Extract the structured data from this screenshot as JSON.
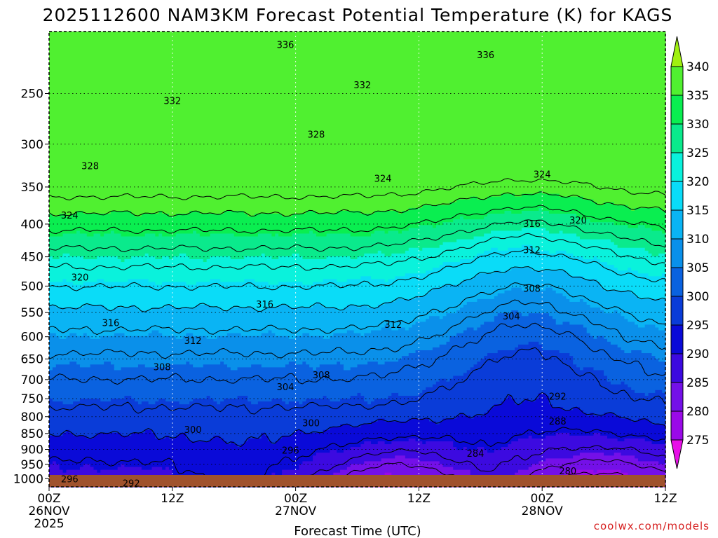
{
  "chart_data": {
    "type": "heatmap",
    "title": "2025112600 NAM3KM Forecast Potential Temperature (K) for KAGS",
    "xlabel": "Forecast Time (UTC)",
    "ylabel": "",
    "credit": "coolwx.com/models",
    "y_axis": {
      "scale": "log-pressure",
      "range": [
        1030,
        200
      ],
      "ticks": [
        1000,
        950,
        900,
        850,
        800,
        750,
        700,
        650,
        600,
        550,
        500,
        450,
        400,
        350,
        300,
        250
      ],
      "tick_labels": [
        "1000",
        "950",
        "900",
        "850",
        "800",
        "750",
        "700",
        "650",
        "600",
        "550",
        "500",
        "450",
        "400",
        "350",
        "300",
        "250"
      ]
    },
    "x_axis": {
      "range_hours": [
        0,
        60
      ],
      "ticks": [
        {
          "hour": 0,
          "lines": [
            "00Z",
            "26NOV",
            "2025"
          ]
        },
        {
          "hour": 12,
          "lines": [
            "12Z"
          ]
        },
        {
          "hour": 24,
          "lines": [
            "00Z",
            "27NOV"
          ]
        },
        {
          "hour": 36,
          "lines": [
            "12Z"
          ]
        },
        {
          "hour": 48,
          "lines": [
            "00Z",
            "28NOV"
          ]
        },
        {
          "hour": 60,
          "lines": [
            "12Z"
          ]
        }
      ]
    },
    "colorbar": {
      "levels": [
        275,
        280,
        285,
        290,
        295,
        300,
        305,
        310,
        315,
        320,
        325,
        330,
        335,
        340
      ],
      "labels": [
        "340",
        "335",
        "330",
        "325",
        "320",
        "315",
        "310",
        "305",
        "300",
        "295",
        "290",
        "285",
        "280",
        "275"
      ],
      "colors": [
        "#e810e8",
        "#c20ae8",
        "#9a0ae8",
        "#7410e8",
        "#3c0ae0",
        "#0a0ad8",
        "#0a3cd8",
        "#0a62e0",
        "#0a90ea",
        "#0ab4f4",
        "#0adcf8",
        "#0af2dc",
        "#0aea8c",
        "#0aee50",
        "#50f030",
        "#a0f010"
      ]
    },
    "contour_interval": 4,
    "contour_labels": [
      {
        "text": "336",
        "hour": 23,
        "p": 210
      },
      {
        "text": "336",
        "hour": 42.5,
        "p": 218
      },
      {
        "text": "332",
        "hour": 12,
        "p": 257
      },
      {
        "text": "332",
        "hour": 30.5,
        "p": 243
      },
      {
        "text": "328",
        "hour": 26,
        "p": 290
      },
      {
        "text": "328",
        "hour": 4,
        "p": 325
      },
      {
        "text": "324",
        "hour": 32.5,
        "p": 340
      },
      {
        "text": "324",
        "hour": 48,
        "p": 335
      },
      {
        "text": "324",
        "hour": 2,
        "p": 388
      },
      {
        "text": "320",
        "hour": 51.5,
        "p": 395
      },
      {
        "text": "316",
        "hour": 47,
        "p": 400
      },
      {
        "text": "312",
        "hour": 47,
        "p": 440
      },
      {
        "text": "320",
        "hour": 3,
        "p": 485
      },
      {
        "text": "308",
        "hour": 47,
        "p": 505
      },
      {
        "text": "316",
        "hour": 21,
        "p": 535
      },
      {
        "text": "304",
        "hour": 45,
        "p": 558
      },
      {
        "text": "316",
        "hour": 6,
        "p": 572
      },
      {
        "text": "312",
        "hour": 33.5,
        "p": 575
      },
      {
        "text": "312",
        "hour": 14,
        "p": 610
      },
      {
        "text": "308",
        "hour": 11,
        "p": 670
      },
      {
        "text": "308",
        "hour": 26.5,
        "p": 690
      },
      {
        "text": "304",
        "hour": 23,
        "p": 720
      },
      {
        "text": "292",
        "hour": 49.5,
        "p": 745
      },
      {
        "text": "288",
        "hour": 49.5,
        "p": 815
      },
      {
        "text": "300",
        "hour": 14,
        "p": 840
      },
      {
        "text": "300",
        "hour": 25.5,
        "p": 820
      },
      {
        "text": "296",
        "hour": 23.5,
        "p": 905
      },
      {
        "text": "284",
        "hour": 41.5,
        "p": 915
      },
      {
        "text": "280",
        "hour": 50.5,
        "p": 975
      },
      {
        "text": "296",
        "hour": 2,
        "p": 1003
      },
      {
        "text": "292",
        "hour": 8,
        "p": 1018
      }
    ]
  }
}
